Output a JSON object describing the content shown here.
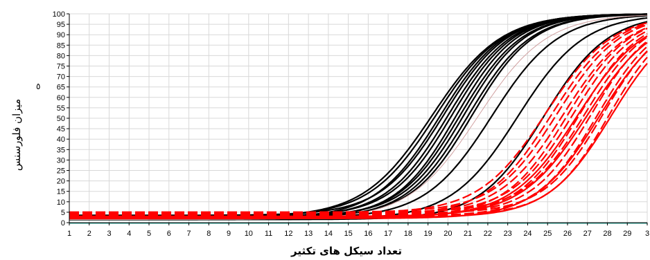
{
  "chart_data": {
    "type": "line",
    "title": "",
    "xlabel": "تعداد سیکل های تکثیر",
    "ylabel": "میزان فلورسنس",
    "ylabel_mark": "٥",
    "x_ticks": [
      "1",
      "2",
      "3",
      "4",
      "5",
      "6",
      "7",
      "8",
      "9",
      "10",
      "11",
      "12",
      "13",
      "14",
      "15",
      "16",
      "17",
      "18",
      "19",
      "20",
      "21",
      "22",
      "23",
      "24",
      "25",
      "26",
      "27",
      "28",
      "29",
      "3"
    ],
    "y_ticks": [
      0,
      5,
      10,
      15,
      20,
      25,
      30,
      35,
      40,
      45,
      50,
      55,
      60,
      65,
      70,
      75,
      80,
      85,
      90,
      95,
      100
    ],
    "xlim": [
      1,
      30
    ],
    "ylim": [
      0,
      100
    ],
    "grid": true,
    "colors": {
      "black_series": "#000000",
      "red_series": "#ff0000",
      "faint_series": "#d0a0a0",
      "grid": "#d8d8d8"
    },
    "series": [
      {
        "group": "black",
        "midpoint": 19.2,
        "slope": 0.58,
        "baseline": 2.5,
        "style": "solid"
      },
      {
        "group": "black",
        "midpoint": 19.4,
        "slope": 0.6,
        "baseline": 3.0,
        "style": "solid"
      },
      {
        "group": "black",
        "midpoint": 19.6,
        "slope": 0.62,
        "baseline": 2.0,
        "style": "solid"
      },
      {
        "group": "black",
        "midpoint": 19.8,
        "slope": 0.63,
        "baseline": 3.5,
        "style": "solid"
      },
      {
        "group": "black",
        "midpoint": 20.0,
        "slope": 0.64,
        "baseline": 2.5,
        "style": "solid"
      },
      {
        "group": "black",
        "midpoint": 20.2,
        "slope": 0.65,
        "baseline": 3.0,
        "style": "solid"
      },
      {
        "group": "black",
        "midpoint": 20.4,
        "slope": 0.66,
        "baseline": 2.0,
        "style": "solid"
      },
      {
        "group": "black",
        "midpoint": 20.6,
        "slope": 0.65,
        "baseline": 2.5,
        "style": "solid"
      },
      {
        "group": "black",
        "midpoint": 20.8,
        "slope": 0.66,
        "baseline": 3.0,
        "style": "solid"
      },
      {
        "group": "black",
        "midpoint": 21.0,
        "slope": 0.64,
        "baseline": 2.0,
        "style": "solid"
      },
      {
        "group": "black",
        "midpoint": 21.2,
        "slope": 0.65,
        "baseline": 2.5,
        "style": "solid"
      },
      {
        "group": "black",
        "midpoint": 22.2,
        "slope": 0.6,
        "baseline": 2.0,
        "style": "solid"
      },
      {
        "group": "black",
        "midpoint": 23.5,
        "slope": 0.6,
        "baseline": 1.5,
        "style": "solid"
      },
      {
        "group": "black",
        "midpoint": 24.8,
        "slope": 0.62,
        "baseline": 1.5,
        "style": "solid"
      },
      {
        "group": "faint",
        "midpoint": 21.5,
        "slope": 0.58,
        "baseline": 1.5,
        "style": "solid"
      },
      {
        "group": "red",
        "midpoint": 24.9,
        "slope": 0.6,
        "baseline": 4.5,
        "style": "dashed"
      },
      {
        "group": "red",
        "midpoint": 25.2,
        "slope": 0.62,
        "baseline": 3.5,
        "style": "dashed"
      },
      {
        "group": "red",
        "midpoint": 25.5,
        "slope": 0.63,
        "baseline": 5.0,
        "style": "dashed"
      },
      {
        "group": "red",
        "midpoint": 25.8,
        "slope": 0.62,
        "baseline": 4.0,
        "style": "dashed"
      },
      {
        "group": "red",
        "midpoint": 26.0,
        "slope": 0.64,
        "baseline": 3.0,
        "style": "dashed"
      },
      {
        "group": "red",
        "midpoint": 26.3,
        "slope": 0.64,
        "baseline": 4.5,
        "style": "dashed"
      },
      {
        "group": "red",
        "midpoint": 26.6,
        "slope": 0.65,
        "baseline": 3.5,
        "style": "dashed"
      },
      {
        "group": "red",
        "midpoint": 26.9,
        "slope": 0.65,
        "baseline": 5.0,
        "style": "dashed"
      },
      {
        "group": "red",
        "midpoint": 27.2,
        "slope": 0.66,
        "baseline": 4.0,
        "style": "dashed"
      },
      {
        "group": "red",
        "midpoint": 27.5,
        "slope": 0.66,
        "baseline": 3.0,
        "style": "dashed"
      },
      {
        "group": "red",
        "midpoint": 27.8,
        "slope": 0.67,
        "baseline": 4.5,
        "style": "dashed"
      },
      {
        "group": "red",
        "midpoint": 28.1,
        "slope": 0.68,
        "baseline": 3.5,
        "style": "dashed"
      },
      {
        "group": "red",
        "midpoint": 26.5,
        "slope": 0.6,
        "baseline": 2.5,
        "style": "solid"
      },
      {
        "group": "red",
        "midpoint": 27.0,
        "slope": 0.6,
        "baseline": 3.0,
        "style": "solid"
      },
      {
        "group": "red",
        "midpoint": 27.6,
        "slope": 0.62,
        "baseline": 2.0,
        "style": "solid"
      },
      {
        "group": "red",
        "midpoint": 28.2,
        "slope": 0.63,
        "baseline": 2.5,
        "style": "solid"
      }
    ]
  }
}
